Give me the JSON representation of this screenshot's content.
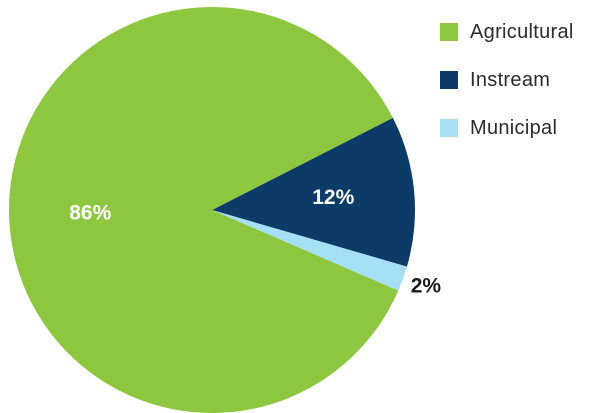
{
  "chart_data": {
    "type": "pie",
    "categories": [
      "Agricultural",
      "Instream",
      "Municipal"
    ],
    "values": [
      86,
      12,
      2
    ],
    "data_labels": [
      "86%",
      "12%",
      "2%"
    ],
    "colors": [
      "#8dc63f",
      "#0b3b66",
      "#a6e0f5"
    ],
    "label_colors": [
      "#ffffff",
      "#ffffff",
      "#1a1a1a"
    ],
    "legend": {
      "placement": "top-right",
      "entries": [
        "Agricultural",
        "Instream",
        "Municipal"
      ]
    }
  }
}
